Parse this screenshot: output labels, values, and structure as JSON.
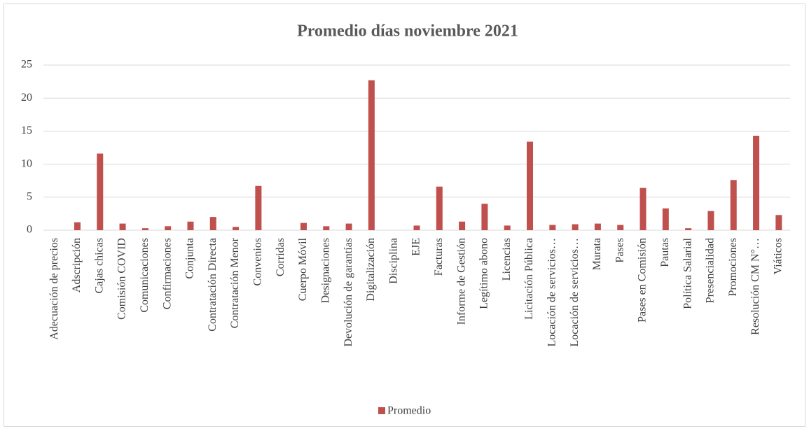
{
  "chart_data": {
    "type": "bar",
    "title": "Promedio días noviembre 2021",
    "categories": [
      "Adecuación de precios",
      "Adscripción",
      "Cajas chicas",
      "Comisión COVID",
      "Comunicaciones",
      "Confirmaciones",
      "Conjunta",
      "Contratación Directa",
      "Contratación Menor",
      "Convenios",
      "Corridas",
      "Cuerpo Móvil",
      "Designaciones",
      "Devolución de garantías",
      "Digitalización",
      "Disciplina",
      "EJE",
      "Facturas",
      "Informe de Gestión",
      "Legítimo abono",
      "Licencias",
      "Licitación Pública",
      "Locación de servicios…",
      "Locación de servicios…",
      "Murata",
      "Pases",
      "Pases en Comisión",
      "Pautas",
      "Política Salarial",
      "Presencialidad",
      "Promociones",
      "Resolución CM N°…",
      "Viáticos"
    ],
    "series": [
      {
        "name": "Promedio",
        "color": "#c0504d",
        "values": [
          0,
          1.2,
          11.6,
          1.0,
          0.3,
          0.6,
          1.3,
          2.0,
          0.5,
          6.7,
          0,
          1.1,
          0.6,
          1.0,
          22.7,
          0,
          0.7,
          6.6,
          1.3,
          4.0,
          0.7,
          13.4,
          0.8,
          0.9,
          1.0,
          0.8,
          6.4,
          3.3,
          0.3,
          2.9,
          7.6,
          14.3,
          2.3
        ]
      }
    ],
    "ylim": [
      0,
      25
    ],
    "yticks": [
      0,
      5,
      10,
      15,
      20,
      25
    ],
    "grid": true,
    "legend": "bottom"
  }
}
